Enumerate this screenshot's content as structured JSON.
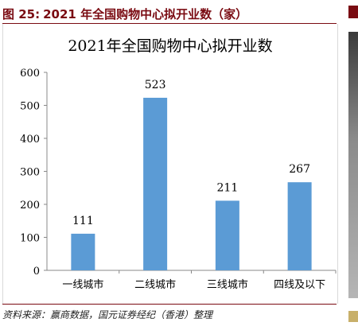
{
  "figure": {
    "label": "图 25:",
    "title": "2021 年全国购物中心拟开业数（家）",
    "source": "资料来源：赢商数据，国元证券经纪（香港）整理"
  },
  "chart_data": {
    "type": "bar",
    "title": "2021年全国购物中心拟开业数",
    "categories": [
      "一线城市",
      "二线城市",
      "三线城市",
      "四线及以下"
    ],
    "values": [
      111,
      523,
      211,
      267
    ],
    "xlabel": "",
    "ylabel": "",
    "ylim": [
      0,
      600
    ],
    "yticks": [
      0,
      100,
      200,
      300,
      400,
      500,
      600
    ],
    "bar_color": "#5b9bd5",
    "grid": false,
    "legend": "none",
    "data_labels": true
  },
  "colors": {
    "heading": "#7a0b12",
    "bar": "#5b9bd5"
  }
}
